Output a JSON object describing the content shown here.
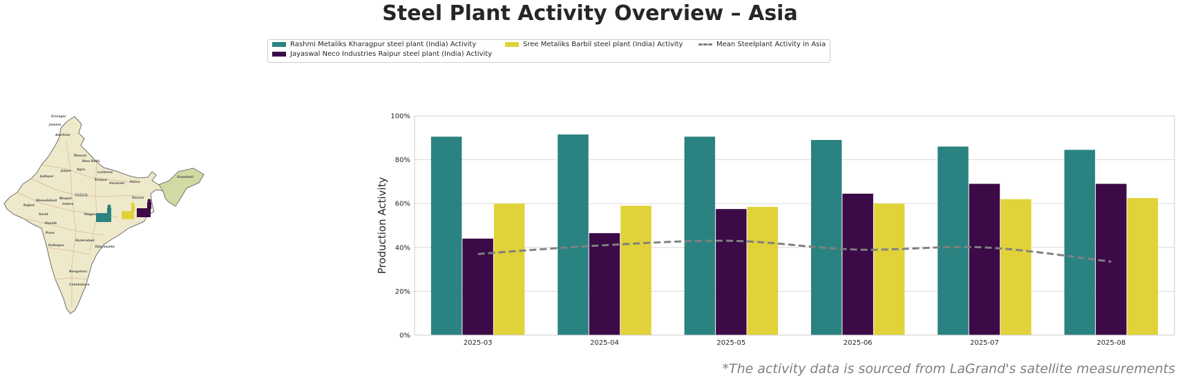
{
  "title": "Steel Plant Activity Overview – Asia",
  "legend": {
    "items": [
      {
        "label": "Rashmi Metaliks Kharagpur steel plant (India) Activity",
        "color": "#2a8380"
      },
      {
        "label": "Jayaswal Neco Industries Raipur steel plant (India) Activity",
        "color": "#3b0a47"
      },
      {
        "label": "Sree Metaliks Barbil steel plant (India) Activity",
        "color": "#e1d23a"
      },
      {
        "label": "Mean Steelplant Activity in Asia",
        "color": "#808080"
      }
    ]
  },
  "map": {
    "cities": [
      "Srinagar",
      "Jammu",
      "Amritsar",
      "Meerut",
      "New Delhi",
      "Jaipur",
      "Agra",
      "Lucknow",
      "Guwahati",
      "Kanpur",
      "Jodhpur",
      "Varanasi",
      "Patna",
      "INDIA",
      "Ranchi",
      "Ahmedabad",
      "Bhopal",
      "Rajkot",
      "Indore",
      "Surat",
      "Nagpur",
      "Nashik",
      "Pune",
      "Hyderabad",
      "Kolhapur",
      "Vijayawada",
      "Bengaluru",
      "Coimbatore"
    ],
    "marker_colors": [
      "#2a8380",
      "#e1d23a",
      "#3b0a47"
    ]
  },
  "chart_data": {
    "type": "bar",
    "categories": [
      "2025-03",
      "2025-04",
      "2025-05",
      "2025-06",
      "2025-07",
      "2025-08"
    ],
    "series": [
      {
        "name": "Rashmi Metaliks Kharagpur steel plant (India) Activity",
        "color": "#2a8380",
        "values": [
          90.5,
          91.5,
          90.5,
          89,
          86,
          84.5
        ]
      },
      {
        "name": "Jayaswal Neco Industries Raipur steel plant (India) Activity",
        "color": "#3b0a47",
        "values": [
          44,
          46.5,
          57.5,
          64.5,
          69,
          69
        ]
      },
      {
        "name": "Sree Metaliks Barbil steel plant (India) Activity",
        "color": "#e1d23a",
        "values": [
          60,
          59,
          58.5,
          60,
          62,
          62.5
        ]
      }
    ],
    "line": {
      "name": "Mean Steelplant Activity in Asia",
      "color": "#808080",
      "values": [
        37,
        41,
        43,
        39,
        40,
        33.5
      ]
    },
    "ylabel": "Production Activity",
    "ylim": [
      0,
      100
    ],
    "yticks": [
      "0%",
      "20%",
      "40%",
      "60%",
      "80%",
      "100%"
    ],
    "grid": true
  },
  "footnote": "*The activity data is sourced from LaGrand's satellite measurements"
}
